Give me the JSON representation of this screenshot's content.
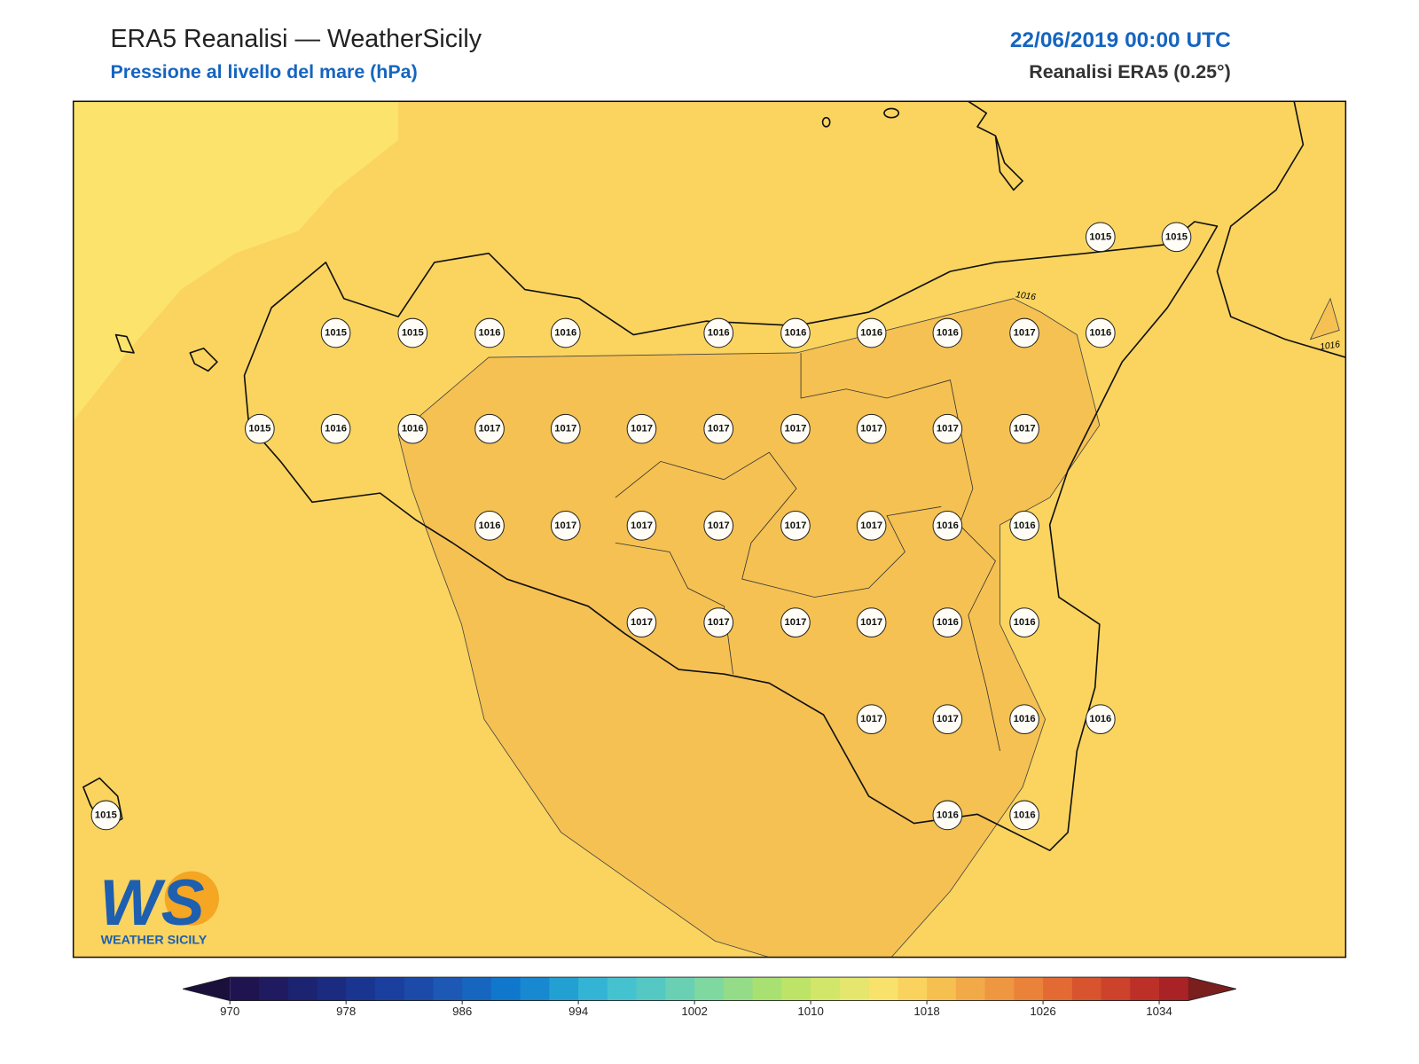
{
  "header": {
    "title": "ERA5 Reanalisi — WeatherSicily",
    "subtitle": "Pressione al livello del mare (hPa)",
    "date": "22/06/2019 00:00 UTC",
    "source": "Reanalisi ERA5 (0.25°)"
  },
  "map": {
    "field_colors": {
      "outer": "#fbe36c",
      "base": "#fad45f",
      "inner": "#f5c152"
    },
    "stations": [
      1015,
      1015,
      1015,
      1015,
      1016,
      1016,
      1016,
      1016,
      1016,
      1016,
      1017,
      1016,
      1015,
      1016,
      1016,
      1017,
      1017,
      1017,
      1017,
      1017,
      1017,
      1017,
      1017,
      1016,
      1017,
      1017,
      1017,
      1017,
      1017,
      1016,
      1016,
      1017,
      1017,
      1017,
      1017,
      1016,
      1016,
      1017,
      1017,
      1016,
      1016,
      1015,
      1016,
      1016
    ],
    "contour_labels": [
      1016,
      1016
    ],
    "colorbar": {
      "lim": [
        970,
        1036
      ],
      "ticks": [
        970,
        978,
        986,
        994,
        1002,
        1010,
        1018,
        1026,
        1034
      ],
      "under": "#1b0f3c",
      "over": "#7a1e1e",
      "colors": [
        "#1f1450",
        "#201a60",
        "#1c2370",
        "#1a2b80",
        "#1a3590",
        "#1a3f9e",
        "#1b4aa8",
        "#1c58b4",
        "#1666c0",
        "#0f78cc",
        "#1888d0",
        "#22a0d2",
        "#33b4d4",
        "#45c2cf",
        "#55c8c4",
        "#6ad0b4",
        "#7ed8a0",
        "#94dc88",
        "#a8e072",
        "#bde466",
        "#d2e66a",
        "#e4e66e",
        "#f8e26c",
        "#fad35e",
        "#f6c050",
        "#f2aa48",
        "#ee9640",
        "#ea823a",
        "#e46a34",
        "#d8542e",
        "#cc422a",
        "#bc3028",
        "#a82226"
      ]
    }
  },
  "logo": {
    "mark": "WS",
    "text": "WEATHER SICILY"
  }
}
